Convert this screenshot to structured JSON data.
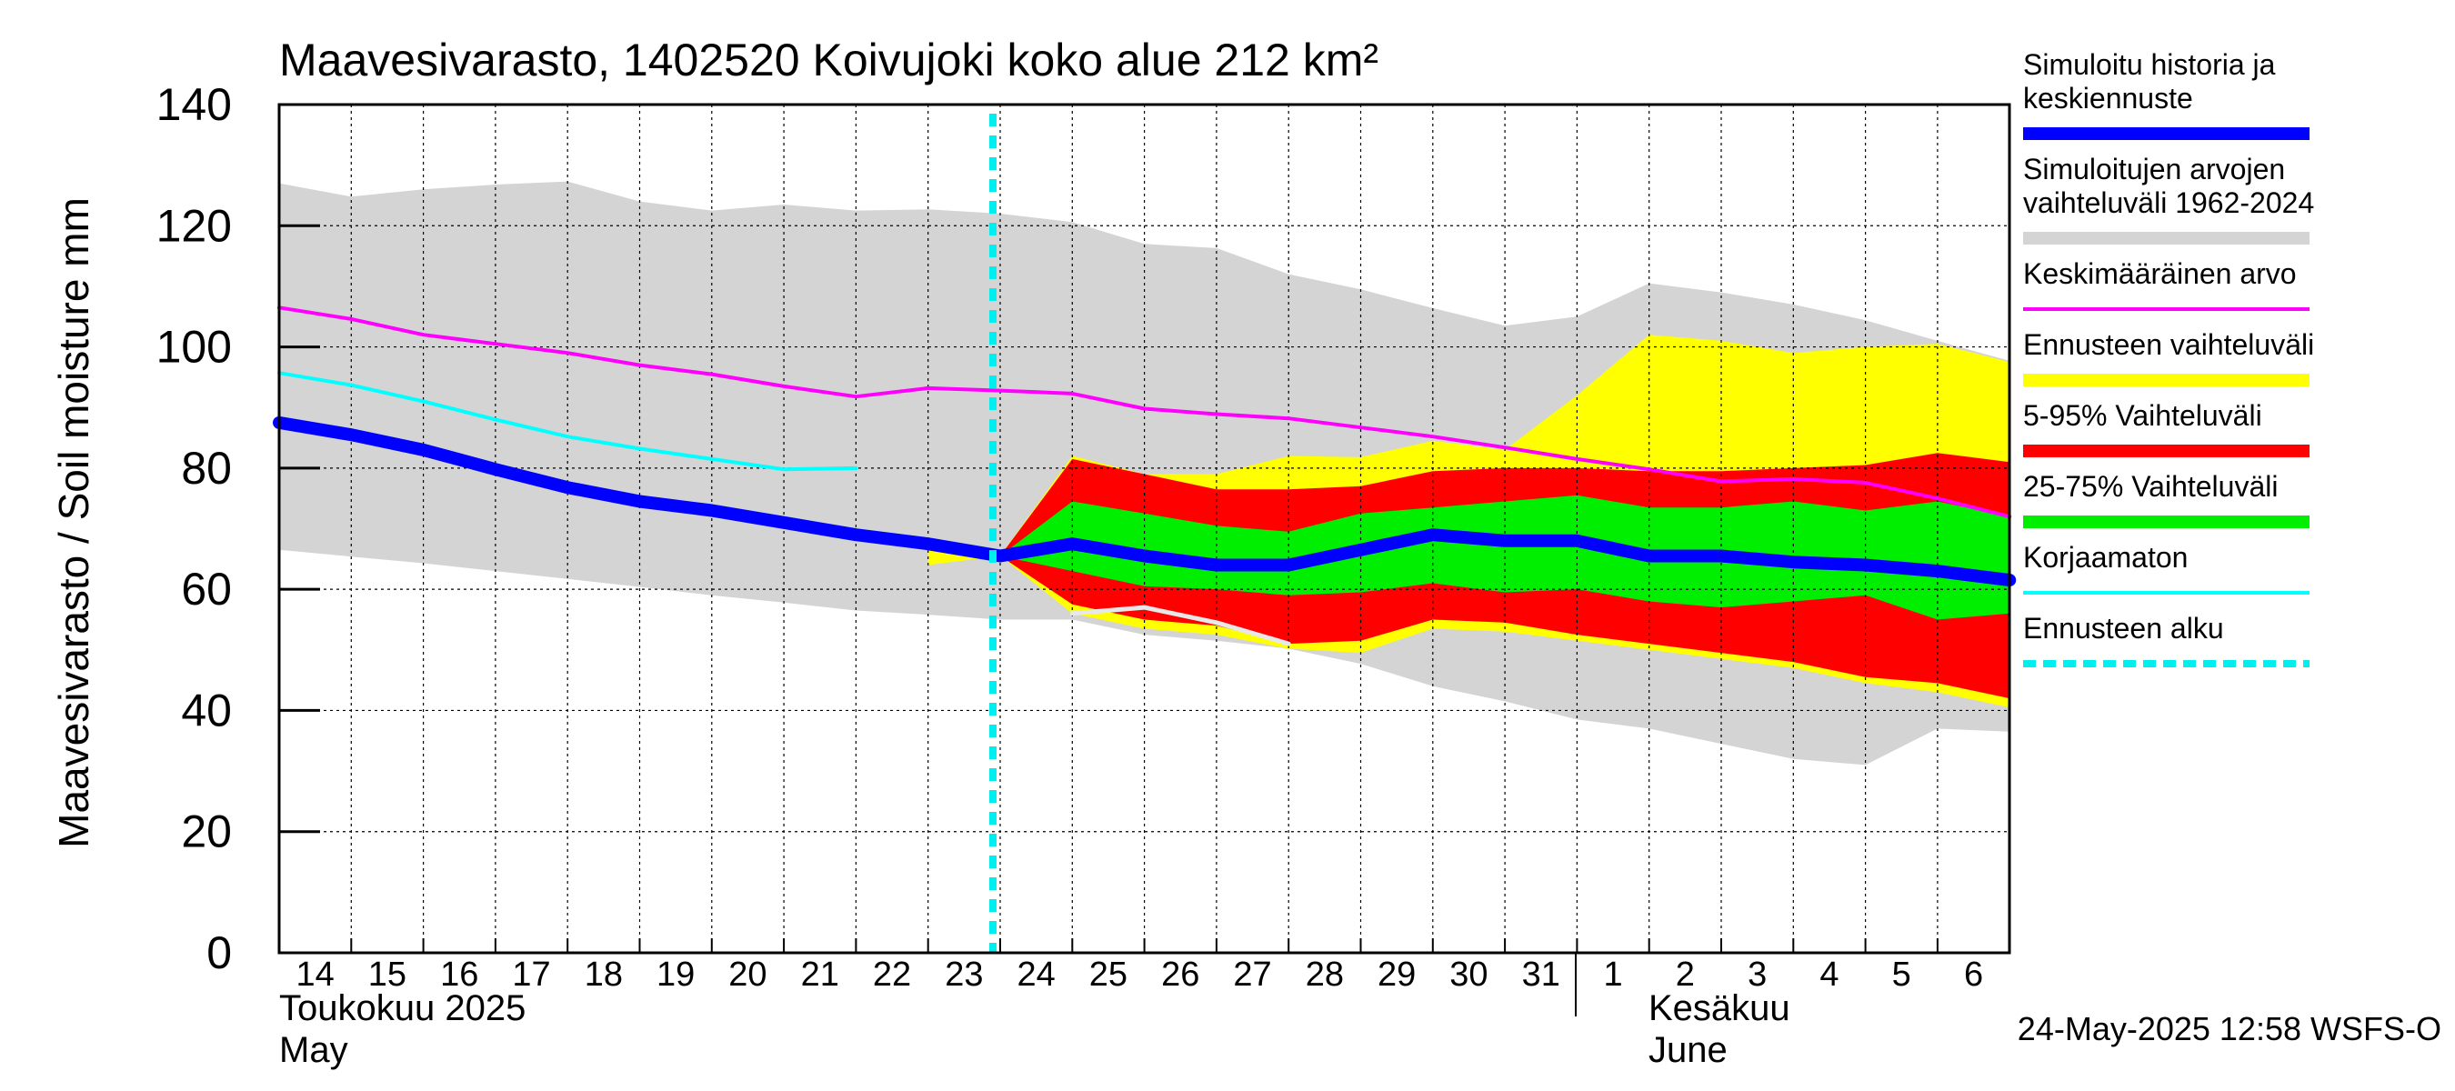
{
  "chart_data": {
    "type": "line",
    "title": "Maavesivarasto, 1402520 Koivujoki koko alue 212 km²",
    "ylabel": "Maavesivarasto / Soil moisture   mm",
    "ylim": [
      0,
      140
    ],
    "yticks": [
      "0",
      "20",
      "40",
      "60",
      "80",
      "100",
      "120",
      "140"
    ],
    "x_days": [
      "14",
      "15",
      "16",
      "17",
      "18",
      "19",
      "20",
      "21",
      "22",
      "23",
      "24",
      "25",
      "26",
      "27",
      "28",
      "29",
      "30",
      "31",
      "1",
      "2",
      "3",
      "4",
      "5",
      "6"
    ],
    "month_labels": {
      "may_fi": "Toukokuu  2025",
      "may_en": "May",
      "june_fi": "Kesäkuu",
      "june_en": "June"
    },
    "forecast_start": "2025-05-24",
    "footer": "24-May-2025 12:58 WSFS-O",
    "grid": true,
    "legend_position": "right",
    "legend": [
      {
        "label": "Simuloitu historia ja\nkeskiennuste",
        "color": "#0000ff",
        "style": "thick"
      },
      {
        "label": "Simuloitujen arvojen\nvaihteluväli 1962-2024",
        "color": "#d4d4d4",
        "style": "thick"
      },
      {
        "label": "Keskimääräinen arvo",
        "color": "#ff00ff",
        "style": "thin"
      },
      {
        "label": "Ennusteen vaihteluväli",
        "color": "#ffff00",
        "style": "thick"
      },
      {
        "label": "5-95% Vaihteluväli",
        "color": "#ff0000",
        "style": "thick"
      },
      {
        "label": "25-75% Vaihteluväli",
        "color": "#00ee00",
        "style": "thick"
      },
      {
        "label": "Korjaamaton",
        "color": "#00ffff",
        "style": "thin"
      },
      {
        "label": "Ennusteen alku",
        "color": "#00eeee",
        "style": "dashed"
      }
    ],
    "historical_range": {
      "x": [
        "2025-05-14",
        "2025-05-15",
        "2025-05-16",
        "2025-05-17",
        "2025-05-18",
        "2025-05-19",
        "2025-05-20",
        "2025-05-21",
        "2025-05-22",
        "2025-05-23",
        "2025-05-24",
        "2025-05-25",
        "2025-05-26",
        "2025-05-27",
        "2025-05-28",
        "2025-05-29",
        "2025-05-30",
        "2025-05-31",
        "2025-06-01",
        "2025-06-02",
        "2025-06-03",
        "2025-06-04",
        "2025-06-05",
        "2025-06-06",
        "2025-06-07"
      ],
      "upper": [
        127,
        124.8,
        126,
        126.8,
        127.3,
        124,
        122.5,
        123.5,
        122.5,
        122.7,
        122,
        120.6,
        117,
        116.3,
        112,
        109.5,
        106.4,
        103.5,
        105,
        110.5,
        109,
        107,
        104.4,
        101,
        97.7
      ],
      "lower": [
        66.5,
        65.4,
        64.3,
        63,
        61.7,
        60.4,
        59,
        57.8,
        56.5,
        55.8,
        55,
        55,
        52.5,
        51.5,
        50.2,
        47.7,
        44,
        41.5,
        38.5,
        37,
        34.5,
        32,
        31,
        37,
        36.5
      ]
    },
    "forecast_range": {
      "x": [
        "2025-05-23",
        "2025-05-24",
        "2025-05-25",
        "2025-05-26",
        "2025-05-27",
        "2025-05-28",
        "2025-05-29",
        "2025-05-30",
        "2025-05-31",
        "2025-06-01",
        "2025-06-02",
        "2025-06-03",
        "2025-06-04",
        "2025-06-05",
        "2025-06-06",
        "2025-06-07"
      ],
      "upper": [
        67.5,
        65.5,
        82,
        79,
        79,
        82,
        81.8,
        84.5,
        83,
        92,
        102,
        101,
        99,
        100,
        100.5,
        97.5
      ],
      "lower": [
        64,
        65.5,
        56,
        53.5,
        52.5,
        50.2,
        49.5,
        53.5,
        53,
        51.5,
        50,
        48.5,
        47,
        44.5,
        43,
        40.5
      ]
    },
    "p5_95": {
      "x": [
        "2025-05-24",
        "2025-05-25",
        "2025-05-26",
        "2025-05-27",
        "2025-05-28",
        "2025-05-29",
        "2025-05-30",
        "2025-05-31",
        "2025-06-01",
        "2025-06-02",
        "2025-06-03",
        "2025-06-04",
        "2025-06-05",
        "2025-06-06",
        "2025-06-07"
      ],
      "upper": [
        65.5,
        81.5,
        79,
        76.5,
        76.5,
        77,
        79.5,
        80,
        80,
        79.5,
        79.5,
        80,
        80.5,
        82.5,
        81
      ],
      "lower": [
        65.5,
        57.5,
        55,
        54,
        51,
        51.5,
        55,
        54.5,
        52.5,
        51,
        49.5,
        48,
        45.5,
        44.5,
        42
      ]
    },
    "p25_75": {
      "x": [
        "2025-05-24",
        "2025-05-25",
        "2025-05-26",
        "2025-05-27",
        "2025-05-28",
        "2025-05-29",
        "2025-05-30",
        "2025-05-31",
        "2025-06-01",
        "2025-06-02",
        "2025-06-03",
        "2025-06-04",
        "2025-06-05",
        "2025-06-06",
        "2025-06-07"
      ],
      "upper": [
        65.5,
        74.5,
        72.5,
        70.5,
        69.5,
        72.5,
        73.5,
        74.5,
        75.5,
        73.5,
        73.5,
        74.5,
        73,
        74.5,
        72
      ],
      "lower": [
        65.5,
        63,
        60.5,
        60,
        59,
        59.5,
        61,
        59.5,
        60,
        58,
        57,
        58,
        59,
        55,
        56
      ]
    },
    "series": [
      {
        "name": "Simuloitu historia ja keskiennuste",
        "color": "#0000ff",
        "x": [
          "2025-05-14",
          "2025-05-15",
          "2025-05-16",
          "2025-05-17",
          "2025-05-18",
          "2025-05-19",
          "2025-05-20",
          "2025-05-21",
          "2025-05-22",
          "2025-05-23",
          "2025-05-24",
          "2025-05-25",
          "2025-05-26",
          "2025-05-27",
          "2025-05-28",
          "2025-05-29",
          "2025-05-30",
          "2025-05-31",
          "2025-06-01",
          "2025-06-02",
          "2025-06-03",
          "2025-06-04",
          "2025-06-05",
          "2025-06-06",
          "2025-06-07"
        ],
        "values": [
          87.5,
          85.5,
          83,
          79.8,
          76.8,
          74.5,
          73,
          71,
          69,
          67.5,
          65.5,
          67.5,
          65.5,
          64,
          64,
          66.5,
          69,
          68,
          68,
          65.5,
          65.5,
          64.5,
          64,
          63,
          61.5
        ]
      },
      {
        "name": "Keskimääräinen arvo",
        "color": "#ff00ff",
        "x": [
          "2025-05-14",
          "2025-05-15",
          "2025-05-16",
          "2025-05-17",
          "2025-05-18",
          "2025-05-19",
          "2025-05-20",
          "2025-05-21",
          "2025-05-22",
          "2025-05-23",
          "2025-05-24",
          "2025-05-25",
          "2025-05-26",
          "2025-05-27",
          "2025-05-28",
          "2025-05-29",
          "2025-05-30",
          "2025-05-31",
          "2025-06-01",
          "2025-06-02",
          "2025-06-03",
          "2025-06-04",
          "2025-06-05",
          "2025-06-06",
          "2025-06-07"
        ],
        "values": [
          106.5,
          104.6,
          102,
          100.5,
          99,
          97,
          95.5,
          93.5,
          91.8,
          93.2,
          92.8,
          92.3,
          89.8,
          88.9,
          88.2,
          86.7,
          85.2,
          83.4,
          81.5,
          79.8,
          77.8,
          78.2,
          77.6,
          75,
          72
        ]
      },
      {
        "name": "Korjaamaton",
        "color": "#00ffff",
        "x": [
          "2025-05-14",
          "2025-05-15",
          "2025-05-16",
          "2025-05-17",
          "2025-05-18",
          "2025-05-19",
          "2025-05-20",
          "2025-05-21",
          "2025-05-22"
        ],
        "values": [
          95.7,
          93.7,
          91,
          88,
          85.2,
          83.2,
          81.5,
          79.8,
          80
        ]
      },
      {
        "name": "Simuloitujen arvojen vaihteluväli 1962-2024",
        "color": "#e8e8e8",
        "x": [
          "2025-05-25",
          "2025-05-26",
          "2025-05-27",
          "2025-05-28"
        ],
        "values": [
          56,
          57,
          54.5,
          51
        ]
      }
    ]
  }
}
